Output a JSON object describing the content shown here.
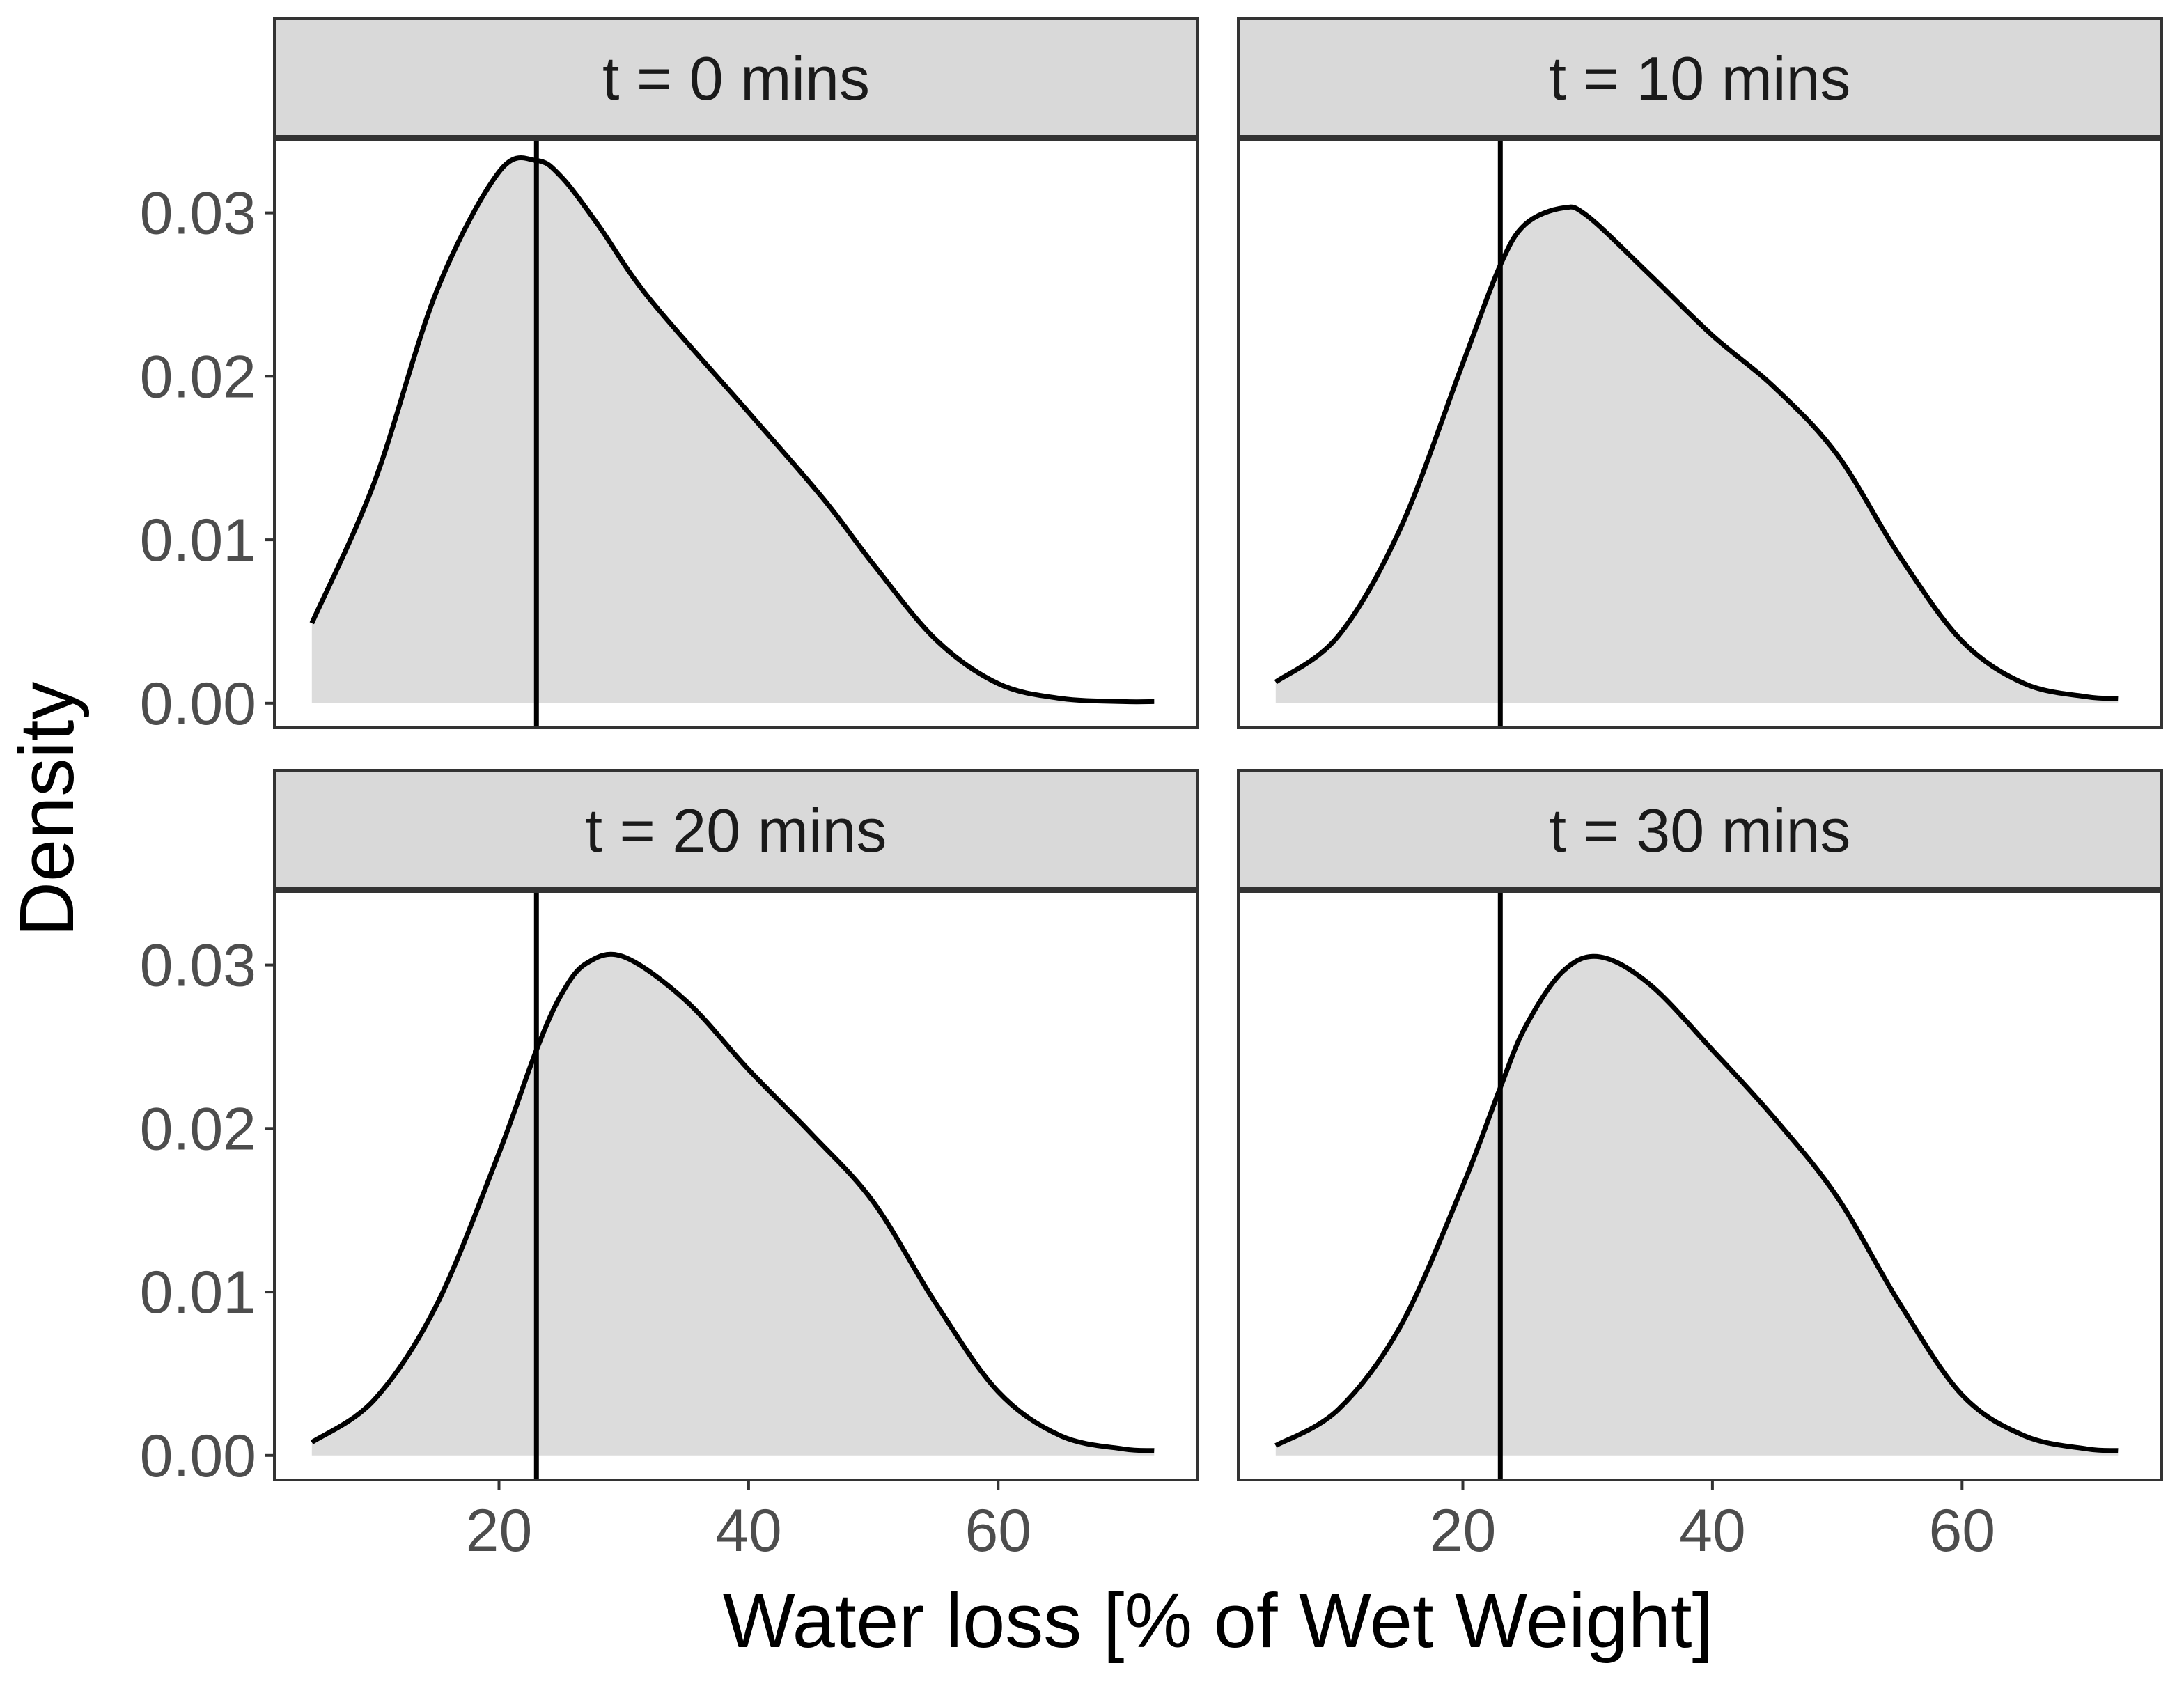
{
  "chart_data": {
    "type": "area",
    "kind": "density facets",
    "xlabel": "Water loss [% of Wet Weight]",
    "ylabel": "Density",
    "xlim": [
      2,
      76
    ],
    "ylim": [
      -0.0015,
      0.0345
    ],
    "x_ticks": [
      20,
      40,
      60
    ],
    "x_tick_labels": [
      "20",
      "40",
      "60"
    ],
    "y_ticks": [
      0.0,
      0.01,
      0.02,
      0.03
    ],
    "y_tick_labels": [
      "0.00",
      "0.01",
      "0.02",
      "0.03"
    ],
    "grid": false,
    "reference_line_x": 23,
    "panels": [
      {
        "label": "t = 0 mins",
        "x": [
          5,
          10,
          15,
          20,
          23,
          25,
          28,
          32,
          40,
          46,
          50,
          55,
          60,
          65,
          70,
          72.5
        ],
        "y": [
          0.0049,
          0.0135,
          0.0252,
          0.0325,
          0.0332,
          0.0322,
          0.0292,
          0.0248,
          0.0178,
          0.0125,
          0.0085,
          0.0039,
          0.0012,
          0.0003,
          0.0001,
          0.0001
        ]
      },
      {
        "label": "t = 10 mins",
        "x": [
          5,
          10,
          15,
          20,
          23,
          25,
          28,
          30,
          35,
          40,
          45,
          50,
          55,
          60,
          65,
          70,
          72.5
        ],
        "y": [
          0.0013,
          0.0041,
          0.0107,
          0.0208,
          0.0268,
          0.0293,
          0.0303,
          0.0298,
          0.0262,
          0.0225,
          0.0193,
          0.0152,
          0.009,
          0.0038,
          0.0012,
          0.0004,
          0.0003
        ]
      },
      {
        "label": "t = 20 mins",
        "x": [
          5,
          10,
          15,
          20,
          23,
          25,
          27,
          30,
          35,
          40,
          45,
          50,
          55,
          60,
          65,
          70,
          72.5
        ],
        "y": [
          0.0008,
          0.0034,
          0.0092,
          0.0185,
          0.0248,
          0.0282,
          0.0301,
          0.0305,
          0.0278,
          0.0236,
          0.0197,
          0.0155,
          0.0093,
          0.0039,
          0.0012,
          0.0004,
          0.0003
        ]
      },
      {
        "label": "t = 30 mins",
        "x": [
          5,
          10,
          15,
          20,
          23,
          25,
          28,
          31,
          35,
          40,
          45,
          50,
          55,
          60,
          65,
          70,
          72.5
        ],
        "y": [
          0.0006,
          0.0028,
          0.0079,
          0.0165,
          0.0225,
          0.0262,
          0.0296,
          0.0305,
          0.0288,
          0.0248,
          0.0206,
          0.0158,
          0.0093,
          0.0037,
          0.0012,
          0.0004,
          0.0003
        ]
      }
    ]
  }
}
